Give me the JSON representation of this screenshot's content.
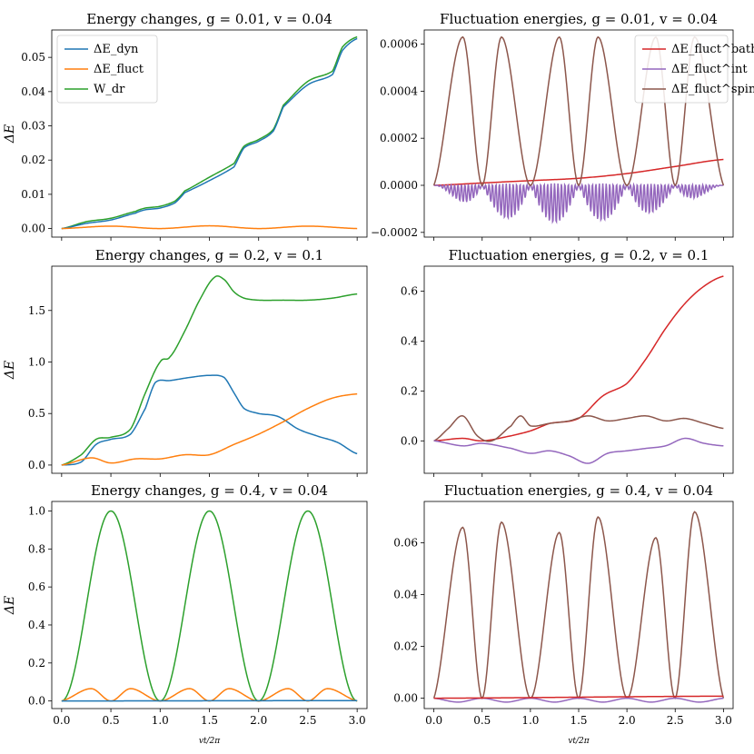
{
  "chart_data": [
    {
      "panel": "top-left",
      "type": "line",
      "title": "Energy changes, g = 0.01, v = 0.04",
      "ylabel": "ΔE",
      "xlabel": "",
      "xlim": [
        -0.1,
        3.1
      ],
      "ylim": [
        -0.0025,
        0.058
      ],
      "xticks": [
        0.0,
        0.5,
        1.0,
        1.5,
        2.0,
        2.5,
        3.0
      ],
      "xtick_labels_visible": false,
      "yticks": [
        0.0,
        0.01,
        0.02,
        0.03,
        0.04,
        0.05
      ],
      "ytick_labels": [
        "0.00",
        "0.01",
        "0.02",
        "0.03",
        "0.04",
        "0.05"
      ],
      "legend": {
        "position": "upper-left",
        "entries": [
          {
            "label": "ΔE_dyn",
            "color": "#1f77b4"
          },
          {
            "label": "ΔE_fluct",
            "color": "#ff7f0e"
          },
          {
            "label": "W_dr",
            "color": "#2ca02c"
          }
        ]
      },
      "series": [
        {
          "name": "W_dr",
          "color": "#2ca02c",
          "x": [
            0.0,
            0.25,
            0.5,
            0.75,
            0.85,
            1.0,
            1.15,
            1.25,
            1.5,
            1.75,
            1.85,
            2.0,
            2.15,
            2.25,
            2.5,
            2.75,
            2.85,
            3.0
          ],
          "y": [
            0.0,
            0.002,
            0.003,
            0.005,
            0.006,
            0.0065,
            0.008,
            0.011,
            0.015,
            0.019,
            0.024,
            0.026,
            0.029,
            0.036,
            0.043,
            0.046,
            0.053,
            0.056
          ]
        },
        {
          "name": "ΔE_dyn",
          "color": "#1f77b4",
          "x": [
            0.0,
            0.25,
            0.5,
            0.75,
            0.85,
            1.0,
            1.15,
            1.25,
            1.5,
            1.75,
            1.85,
            2.0,
            2.15,
            2.25,
            2.5,
            2.75,
            2.85,
            3.0
          ],
          "y": [
            0.0,
            0.0015,
            0.0025,
            0.0045,
            0.0055,
            0.006,
            0.0075,
            0.0105,
            0.014,
            0.018,
            0.0235,
            0.0255,
            0.0285,
            0.0355,
            0.042,
            0.045,
            0.052,
            0.0555
          ]
        },
        {
          "name": "ΔE_fluct",
          "color": "#ff7f0e",
          "x": [
            0.0,
            0.5,
            1.0,
            1.5,
            2.0,
            2.5,
            3.0
          ],
          "y": [
            0.0,
            0.0007,
            0.0,
            0.0008,
            0.0,
            0.0007,
            0.0
          ]
        }
      ]
    },
    {
      "panel": "top-right",
      "type": "line",
      "title": "Fluctuation energies, g = 0.01, v = 0.04",
      "ylabel": "",
      "xlabel": "",
      "xlim": [
        -0.1,
        3.1
      ],
      "ylim": [
        -0.00022,
        0.00066
      ],
      "xticks": [
        0.0,
        0.5,
        1.0,
        1.5,
        2.0,
        2.5,
        3.0
      ],
      "xtick_labels_visible": false,
      "yticks": [
        -0.0002,
        0.0,
        0.0002,
        0.0004,
        0.0006
      ],
      "ytick_labels": [
        "−0.0002",
        "0.0000",
        "0.0002",
        "0.0004",
        "0.0006"
      ],
      "legend": {
        "position": "upper-right",
        "entries": [
          {
            "label": "ΔE_fluct^bath",
            "color": "#d62728"
          },
          {
            "label": "ΔE_fluct^int",
            "color": "#9467bd"
          },
          {
            "label": "ΔE_fluct^spin",
            "color": "#8c564b"
          }
        ]
      },
      "series": [
        {
          "name": "ΔE_fluct^bath",
          "color": "#d62728",
          "x": [
            0.0,
            0.5,
            1.0,
            1.5,
            2.0,
            2.5,
            3.0
          ],
          "y": [
            0.0,
            1e-05,
            2e-05,
            3e-05,
            5e-05,
            8e-05,
            0.00011
          ]
        },
        {
          "name": "ΔE_fluct^int",
          "color": "#9467bd",
          "x": [
            0.0,
            0.5,
            1.0,
            1.5,
            2.0,
            2.5,
            3.0
          ],
          "y_envelope_amplitude": [
            0.0,
            0.00013,
            0.00017,
            0.00017,
            0.00015,
            0.0001,
            0.0
          ],
          "oscillation": "rapid, centered near 0"
        },
        {
          "name": "ΔE_fluct^spin",
          "color": "#8c564b",
          "x": [
            0.0,
            0.3,
            0.5,
            0.7,
            1.0,
            1.3,
            1.5,
            1.7,
            2.0,
            2.3,
            2.5,
            2.7,
            3.0
          ],
          "y": [
            0.0,
            0.00063,
            0.0,
            0.00063,
            0.0,
            0.00063,
            0.0,
            0.00063,
            0.0,
            0.00063,
            0.0,
            0.00063,
            0.0
          ]
        }
      ]
    },
    {
      "panel": "middle-left",
      "type": "line",
      "title": "Energy changes, g = 0.2, v = 0.1",
      "ylabel": "ΔE",
      "xlabel": "",
      "xlim": [
        -0.1,
        3.1
      ],
      "ylim": [
        -0.08,
        1.93
      ],
      "xticks": [
        0.0,
        0.5,
        1.0,
        1.5,
        2.0,
        2.5,
        3.0
      ],
      "xtick_labels_visible": false,
      "yticks": [
        0.0,
        0.5,
        1.0,
        1.5
      ],
      "ytick_labels": [
        "0.0",
        "0.5",
        "1.0",
        "1.5"
      ],
      "series": [
        {
          "name": "W_dr",
          "color": "#2ca02c",
          "x": [
            0.0,
            0.2,
            0.35,
            0.5,
            0.7,
            0.85,
            1.0,
            1.1,
            1.25,
            1.4,
            1.55,
            1.65,
            1.75,
            1.85,
            2.0,
            2.25,
            2.5,
            2.75,
            3.0
          ],
          "y": [
            0.0,
            0.1,
            0.25,
            0.27,
            0.35,
            0.7,
            1.0,
            1.05,
            1.3,
            1.6,
            1.82,
            1.8,
            1.68,
            1.62,
            1.6,
            1.6,
            1.6,
            1.62,
            1.66
          ]
        },
        {
          "name": "ΔE_dyn",
          "color": "#1f77b4",
          "x": [
            0.0,
            0.2,
            0.35,
            0.5,
            0.7,
            0.85,
            0.95,
            1.1,
            1.3,
            1.5,
            1.65,
            1.75,
            1.85,
            2.0,
            2.2,
            2.4,
            2.6,
            2.8,
            3.0
          ],
          "y": [
            0.0,
            0.03,
            0.2,
            0.25,
            0.3,
            0.55,
            0.8,
            0.82,
            0.85,
            0.87,
            0.85,
            0.7,
            0.55,
            0.5,
            0.47,
            0.35,
            0.28,
            0.22,
            0.11
          ]
        },
        {
          "name": "ΔE_fluct",
          "color": "#ff7f0e",
          "x": [
            0.0,
            0.3,
            0.5,
            0.75,
            1.0,
            1.25,
            1.5,
            1.75,
            2.0,
            2.25,
            2.5,
            2.75,
            3.0
          ],
          "y": [
            0.0,
            0.07,
            0.02,
            0.06,
            0.06,
            0.1,
            0.1,
            0.2,
            0.3,
            0.42,
            0.55,
            0.65,
            0.69
          ]
        }
      ]
    },
    {
      "panel": "middle-right",
      "type": "line",
      "title": "Fluctuation energies, g = 0.2, v = 0.1",
      "ylabel": "",
      "xlabel": "",
      "xlim": [
        -0.1,
        3.1
      ],
      "ylim": [
        -0.13,
        0.7
      ],
      "xticks": [
        0.0,
        0.5,
        1.0,
        1.5,
        2.0,
        2.5,
        3.0
      ],
      "xtick_labels_visible": false,
      "yticks": [
        0.0,
        0.2,
        0.4,
        0.6
      ],
      "ytick_labels": [
        "0.0",
        "0.2",
        "0.4",
        "0.6"
      ],
      "series": [
        {
          "name": "ΔE_fluct^bath",
          "color": "#d62728",
          "x": [
            0.0,
            0.3,
            0.5,
            0.8,
            1.0,
            1.2,
            1.5,
            1.75,
            2.0,
            2.2,
            2.4,
            2.6,
            2.8,
            3.0
          ],
          "y": [
            0.0,
            0.01,
            0.0,
            0.02,
            0.04,
            0.07,
            0.09,
            0.18,
            0.23,
            0.33,
            0.45,
            0.55,
            0.62,
            0.66
          ]
        },
        {
          "name": "ΔE_fluct^spin",
          "color": "#8c564b",
          "x": [
            0.0,
            0.15,
            0.3,
            0.45,
            0.6,
            0.8,
            0.9,
            1.0,
            1.2,
            1.4,
            1.6,
            1.8,
            2.0,
            2.2,
            2.4,
            2.6,
            2.8,
            3.0
          ],
          "y": [
            0.0,
            0.05,
            0.1,
            0.02,
            0.0,
            0.06,
            0.1,
            0.06,
            0.07,
            0.08,
            0.1,
            0.08,
            0.09,
            0.1,
            0.08,
            0.09,
            0.07,
            0.05
          ]
        },
        {
          "name": "ΔE_fluct^int",
          "color": "#9467bd",
          "x": [
            0.0,
            0.3,
            0.5,
            0.8,
            1.0,
            1.2,
            1.4,
            1.6,
            1.8,
            2.0,
            2.2,
            2.4,
            2.6,
            2.8,
            3.0
          ],
          "y": [
            0.0,
            -0.02,
            -0.01,
            -0.03,
            -0.05,
            -0.04,
            -0.06,
            -0.09,
            -0.05,
            -0.04,
            -0.03,
            -0.02,
            0.01,
            -0.01,
            -0.02
          ]
        }
      ]
    },
    {
      "panel": "bottom-left",
      "type": "line",
      "title": "Energy changes, g = 0.4, v = 0.04",
      "ylabel": "ΔE",
      "xlabel": "vt/2π",
      "xlim": [
        -0.1,
        3.1
      ],
      "ylim": [
        -0.04,
        1.05
      ],
      "xticks": [
        0.0,
        0.5,
        1.0,
        1.5,
        2.0,
        2.5,
        3.0
      ],
      "xtick_labels": [
        "0.0",
        "0.5",
        "1.0",
        "1.5",
        "2.0",
        "2.5",
        "3.0"
      ],
      "yticks": [
        0.0,
        0.2,
        0.4,
        0.6,
        0.8,
        1.0
      ],
      "ytick_labels": [
        "0.0",
        "0.2",
        "0.4",
        "0.6",
        "0.8",
        "1.0"
      ],
      "series": [
        {
          "name": "W_dr",
          "color": "#2ca02c",
          "form": "sin²(πx)",
          "x": [
            0.0,
            0.5,
            1.0,
            1.5,
            2.0,
            2.5,
            3.0
          ],
          "y": [
            0.0,
            1.0,
            0.0,
            1.0,
            0.0,
            1.0,
            0.0
          ]
        },
        {
          "name": "ΔE_fluct",
          "color": "#ff7f0e",
          "x": [
            0.0,
            0.3,
            0.5,
            0.7,
            1.0,
            1.3,
            1.5,
            1.7,
            2.0,
            2.3,
            2.5,
            2.7,
            3.0
          ],
          "y": [
            0.0,
            0.065,
            0.0,
            0.065,
            0.0,
            0.065,
            0.0,
            0.065,
            0.0,
            0.065,
            0.0,
            0.065,
            0.0
          ]
        },
        {
          "name": "ΔE_dyn",
          "color": "#1f77b4",
          "x": [
            0.0,
            3.0
          ],
          "y": [
            0.0,
            0.002
          ]
        }
      ]
    },
    {
      "panel": "bottom-right",
      "type": "line",
      "title": "Fluctuation energies, g = 0.4, v = 0.04",
      "ylabel": "",
      "xlabel": "vt/2π",
      "xlim": [
        -0.1,
        3.1
      ],
      "ylim": [
        -0.004,
        0.076
      ],
      "xticks": [
        0.0,
        0.5,
        1.0,
        1.5,
        2.0,
        2.5,
        3.0
      ],
      "xtick_labels": [
        "0.0",
        "0.5",
        "1.0",
        "1.5",
        "2.0",
        "2.5",
        "3.0"
      ],
      "yticks": [
        0.0,
        0.02,
        0.04,
        0.06
      ],
      "ytick_labels": [
        "0.00",
        "0.02",
        "0.04",
        "0.06"
      ],
      "series": [
        {
          "name": "ΔE_fluct^spin",
          "color": "#8c564b",
          "x": [
            0.0,
            0.3,
            0.5,
            0.7,
            1.0,
            1.3,
            1.5,
            1.7,
            2.0,
            2.3,
            2.5,
            2.7,
            3.0
          ],
          "y": [
            0.0,
            0.066,
            0.0,
            0.068,
            0.0,
            0.064,
            0.0,
            0.07,
            0.0,
            0.062,
            0.0,
            0.072,
            0.0
          ]
        },
        {
          "name": "ΔE_fluct^int",
          "color": "#9467bd",
          "x": [
            0.0,
            0.25,
            0.5,
            0.75,
            1.0,
            1.25,
            1.5,
            1.75,
            2.0,
            2.25,
            2.5,
            2.75,
            3.0
          ],
          "y": [
            0.0,
            -0.0015,
            0.0,
            -0.0015,
            0.0,
            -0.0015,
            0.0,
            -0.0015,
            0.0,
            -0.0015,
            0.0,
            -0.0015,
            0.0
          ]
        },
        {
          "name": "ΔE_fluct^bath",
          "color": "#d62728",
          "x": [
            0.0,
            3.0
          ],
          "y": [
            0.0,
            0.0008
          ]
        }
      ]
    }
  ]
}
